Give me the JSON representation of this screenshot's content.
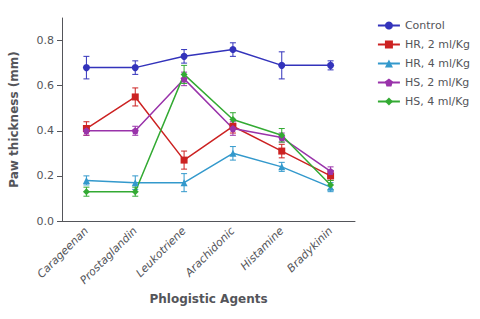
{
  "chart_data": {
    "type": "line",
    "xlabel": "Phlogistic Agents",
    "ylabel": "Paw thickness (mm)",
    "categories": [
      "Carageenan",
      "Prostaglandin",
      "Leukotriene",
      "Arachidonic",
      "Histamine",
      "Bradykinin"
    ],
    "series": [
      {
        "name": "Control",
        "color": "#3333bb",
        "marker": "circle",
        "values": [
          0.68,
          0.68,
          0.73,
          0.76,
          0.69,
          0.69
        ],
        "errors": [
          0.05,
          0.03,
          0.03,
          0.03,
          0.06,
          0.02
        ]
      },
      {
        "name": "HR, 2 ml/Kg",
        "color": "#cc2222",
        "marker": "square",
        "values": [
          0.41,
          0.55,
          0.27,
          0.42,
          0.31,
          0.2
        ],
        "errors": [
          0.03,
          0.04,
          0.04,
          0.03,
          0.03,
          0.02
        ]
      },
      {
        "name": "HR, 4 ml/Kg",
        "color": "#3399cc",
        "marker": "triangle",
        "values": [
          0.18,
          0.17,
          0.17,
          0.3,
          0.24,
          0.15
        ],
        "errors": [
          0.02,
          0.03,
          0.04,
          0.03,
          0.02,
          0.02
        ]
      },
      {
        "name": "HS, 2 ml/Kg",
        "color": "#9933aa",
        "marker": "pentagon",
        "values": [
          0.4,
          0.4,
          0.63,
          0.41,
          0.37,
          0.22
        ],
        "errors": [
          0.02,
          0.02,
          0.03,
          0.03,
          0.02,
          0.02
        ]
      },
      {
        "name": "HS, 4 ml/Kg",
        "color": "#33aa33",
        "marker": "diamond",
        "values": [
          0.13,
          0.13,
          0.65,
          0.45,
          0.38,
          0.16
        ],
        "errors": [
          0.02,
          0.02,
          0.04,
          0.03,
          0.03,
          0.02
        ]
      }
    ],
    "ylim": [
      0,
      0.9
    ],
    "yticks": [
      {
        "value": 0,
        "label": "0.0"
      },
      0.2,
      0.4,
      0.6,
      0.8
    ],
    "grid": false,
    "legend": "right"
  }
}
